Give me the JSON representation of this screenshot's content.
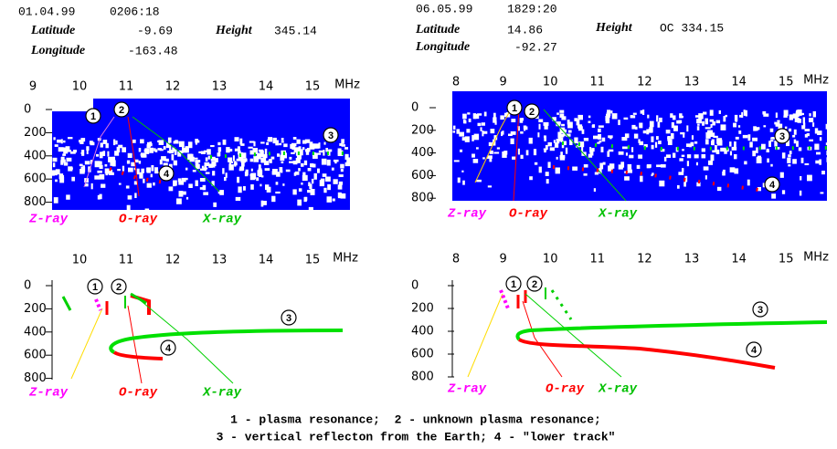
{
  "headers": [
    {
      "date": "01.04.99",
      "time": "0206:18",
      "latitude_label": "Latitude",
      "latitude": "-9.69",
      "height_label": "Height",
      "height": "345.14",
      "longitude_label": "Longitude",
      "longitude": "-163.48"
    },
    {
      "date": "06.05.99",
      "time": "1829:20",
      "latitude_label": "Latitude",
      "latitude": "14.86",
      "height_label": "Height",
      "height": "OC 334.15",
      "longitude_label": "Longitude",
      "longitude": "-92.27"
    }
  ],
  "panels": [
    {
      "freq_ticks": [
        9,
        10,
        11,
        12,
        13,
        14,
        15
      ],
      "freq_unit": "MHz",
      "height_ticks": [
        0,
        200,
        400,
        600,
        800
      ],
      "rays": [
        "Z-ray",
        "O-ray",
        "X-ray"
      ],
      "markers": [
        "1",
        "2",
        "3",
        "4"
      ]
    },
    {
      "freq_ticks": [
        8,
        9,
        10,
        11,
        12,
        13,
        14,
        15
      ],
      "freq_unit": "MHz",
      "height_ticks": [
        0,
        200,
        400,
        600,
        800
      ],
      "rays": [
        "Z-ray",
        "O-ray",
        "X-ray"
      ],
      "markers": [
        "1",
        "2",
        "3",
        "4"
      ]
    },
    {
      "freq_ticks": [
        10,
        11,
        12,
        13,
        14,
        15
      ],
      "freq_unit": "MHz",
      "height_ticks": [
        0,
        200,
        400,
        600,
        800
      ],
      "rays": [
        "Z-ray",
        "O-ray",
        "X-ray"
      ],
      "markers": [
        "1",
        "2",
        "3",
        "4"
      ]
    },
    {
      "freq_ticks": [
        8,
        9,
        10,
        11,
        12,
        13,
        14,
        15
      ],
      "freq_unit": "MHz",
      "height_ticks": [
        0,
        200,
        400,
        600,
        800
      ],
      "rays": [
        "Z-ray",
        "O-ray",
        "X-ray"
      ],
      "markers": [
        "1",
        "2",
        "3",
        "4"
      ]
    }
  ],
  "caption": [
    "1 - plasma resonance;  2 - unknown plasma resonance;",
    "3 - vertical reflecton from the Earth; 4 - \"lower track\""
  ]
}
